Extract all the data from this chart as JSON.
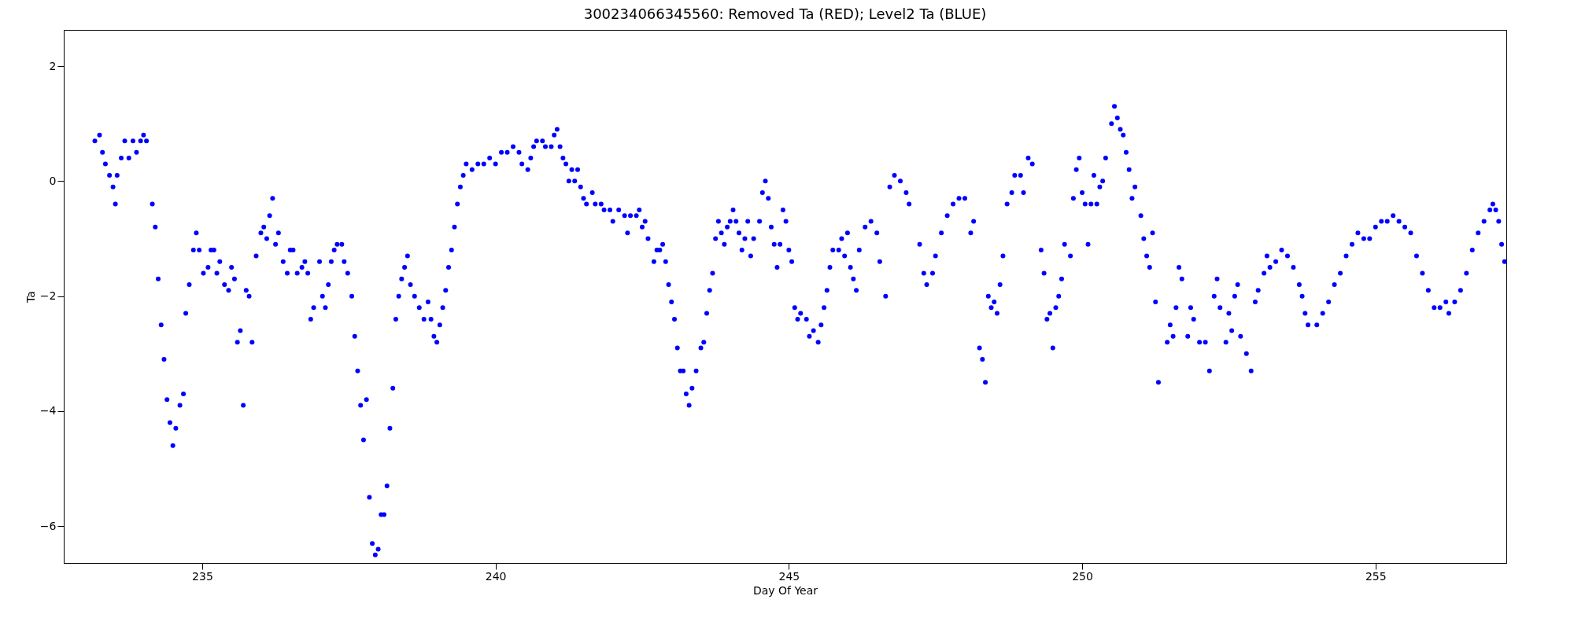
{
  "chart_data": {
    "type": "scatter",
    "title": "300234066345560: Removed Ta (RED); Level2 Ta (BLUE)",
    "xlabel": "Day Of Year",
    "ylabel": "Ta",
    "xlim": [
      232.64,
      257.23
    ],
    "ylim": [
      -6.64,
      2.63
    ],
    "xticks": [
      235,
      240,
      245,
      250,
      255
    ],
    "yticks": [
      -6,
      -4,
      -2,
      0,
      2
    ],
    "grid": false,
    "legend": false,
    "marker": "circle",
    "series": [
      {
        "color": "#0000ff",
        "x": [
          233.17,
          233.25,
          233.3,
          233.35,
          233.42,
          233.48,
          233.52,
          233.55,
          233.62,
          233.68,
          233.75,
          233.82,
          233.88,
          233.95,
          234.0,
          234.05,
          234.15,
          234.2,
          234.25,
          234.3,
          234.35,
          234.4,
          234.45,
          234.5,
          234.55,
          234.62,
          234.68,
          234.72,
          234.78,
          234.85,
          234.9,
          234.95,
          235.02,
          235.1,
          235.15,
          235.2,
          235.25,
          235.3,
          235.38,
          235.45,
          235.5,
          235.55,
          235.6,
          235.65,
          235.7,
          235.75,
          235.8,
          235.85,
          235.92,
          236.0,
          236.05,
          236.1,
          236.15,
          236.2,
          236.25,
          236.3,
          236.38,
          236.45,
          236.5,
          236.55,
          236.62,
          236.7,
          236.75,
          236.8,
          236.85,
          236.9,
          237.0,
          237.05,
          237.1,
          237.15,
          237.2,
          237.25,
          237.3,
          237.38,
          237.42,
          237.48,
          237.55,
          237.6,
          237.65,
          237.7,
          237.75,
          237.8,
          237.85,
          237.9,
          237.95,
          238.0,
          238.05,
          238.1,
          238.15,
          238.2,
          238.25,
          238.3,
          238.35,
          238.4,
          238.45,
          238.5,
          238.55,
          238.62,
          238.7,
          238.78,
          238.85,
          238.9,
          238.95,
          239.0,
          239.05,
          239.1,
          239.15,
          239.2,
          239.25,
          239.3,
          239.35,
          239.4,
          239.45,
          239.5,
          239.6,
          239.7,
          239.8,
          239.9,
          240.0,
          240.1,
          240.2,
          240.3,
          240.4,
          240.45,
          240.55,
          240.6,
          240.65,
          240.7,
          240.8,
          240.85,
          240.95,
          241.0,
          241.05,
          241.1,
          241.15,
          241.2,
          241.25,
          241.3,
          241.35,
          241.4,
          241.45,
          241.5,
          241.55,
          241.65,
          241.7,
          241.8,
          241.85,
          241.95,
          242.0,
          242.1,
          242.2,
          242.25,
          242.3,
          242.4,
          242.45,
          242.5,
          242.55,
          242.6,
          242.7,
          242.75,
          242.8,
          242.85,
          242.9,
          242.95,
          243.0,
          243.05,
          243.1,
          243.15,
          243.2,
          243.25,
          243.3,
          243.35,
          243.42,
          243.5,
          243.55,
          243.6,
          243.65,
          243.7,
          243.75,
          243.8,
          243.85,
          243.9,
          243.95,
          244.0,
          244.05,
          244.1,
          244.15,
          244.2,
          244.25,
          244.3,
          244.35,
          244.4,
          244.5,
          244.55,
          244.6,
          244.65,
          244.7,
          244.75,
          244.8,
          244.85,
          244.9,
          244.95,
          245.0,
          245.05,
          245.1,
          245.15,
          245.2,
          245.3,
          245.35,
          245.42,
          245.5,
          245.55,
          245.6,
          245.65,
          245.7,
          245.75,
          245.85,
          245.9,
          245.95,
          246.0,
          246.05,
          246.1,
          246.15,
          246.2,
          246.3,
          246.4,
          246.5,
          246.55,
          246.65,
          246.72,
          246.8,
          246.9,
          247.0,
          247.05,
          247.23,
          247.3,
          247.35,
          247.45,
          247.5,
          247.6,
          247.7,
          247.8,
          247.9,
          248.0,
          248.1,
          248.15,
          248.25,
          248.3,
          248.35,
          248.4,
          248.45,
          248.5,
          248.55,
          248.6,
          248.65,
          248.72,
          248.8,
          248.85,
          248.95,
          249.0,
          249.08,
          249.15,
          249.3,
          249.35,
          249.4,
          249.45,
          249.5,
          249.55,
          249.6,
          249.65,
          249.7,
          249.8,
          249.85,
          249.9,
          249.95,
          250.0,
          250.05,
          250.1,
          250.15,
          250.2,
          250.25,
          250.3,
          250.35,
          250.4,
          250.5,
          250.55,
          250.6,
          250.65,
          250.7,
          250.75,
          250.8,
          250.85,
          250.9,
          251.0,
          251.05,
          251.1,
          251.15,
          251.2,
          251.25,
          251.3,
          251.45,
          251.5,
          251.55,
          251.6,
          251.65,
          251.7,
          251.8,
          251.85,
          251.9,
          252.0,
          252.1,
          252.17,
          252.25,
          252.3,
          252.35,
          252.45,
          252.5,
          252.55,
          252.6,
          252.65,
          252.7,
          252.8,
          252.88,
          252.95,
          253.0,
          253.1,
          253.15,
          253.2,
          253.3,
          253.4,
          253.5,
          253.6,
          253.7,
          253.75,
          253.8,
          253.85,
          254.0,
          254.1,
          254.2,
          254.3,
          254.4,
          254.5,
          254.6,
          254.7,
          254.8,
          254.9,
          255.0,
          255.1,
          255.2,
          255.3,
          255.4,
          255.5,
          255.6,
          255.7,
          255.8,
          255.9,
          256.0,
          256.1,
          256.2,
          256.25,
          256.35,
          256.45,
          256.55,
          256.65,
          256.75,
          256.85,
          256.95,
          257.0,
          257.05,
          257.1,
          257.15,
          257.2
        ],
        "values": [
          0.7,
          0.8,
          0.5,
          0.3,
          0.1,
          -0.1,
          -0.4,
          0.1,
          0.4,
          0.7,
          0.4,
          0.7,
          0.5,
          0.7,
          0.8,
          0.7,
          -0.4,
          -0.8,
          -1.7,
          -2.5,
          -3.1,
          -3.8,
          -4.2,
          -4.6,
          -4.3,
          -3.9,
          -3.7,
          -2.3,
          -1.8,
          -1.2,
          -0.9,
          -1.2,
          -1.6,
          -1.5,
          -1.2,
          -1.2,
          -1.6,
          -1.4,
          -1.8,
          -1.9,
          -1.5,
          -1.7,
          -2.8,
          -2.6,
          -3.9,
          -1.9,
          -2.0,
          -2.8,
          -1.3,
          -0.9,
          -0.8,
          -1.0,
          -0.6,
          -0.3,
          -1.1,
          -0.9,
          -1.4,
          -1.6,
          -1.2,
          -1.2,
          -1.6,
          -1.5,
          -1.4,
          -1.6,
          -2.4,
          -2.2,
          -1.4,
          -2.0,
          -2.2,
          -1.8,
          -1.4,
          -1.2,
          -1.1,
          -1.1,
          -1.4,
          -1.6,
          -2.0,
          -2.7,
          -3.3,
          -3.9,
          -4.5,
          -3.8,
          -5.5,
          -6.3,
          -6.5,
          -6.4,
          -5.8,
          -5.8,
          -5.3,
          -4.3,
          -3.6,
          -2.4,
          -2.0,
          -1.7,
          -1.5,
          -1.3,
          -1.8,
          -2.0,
          -2.2,
          -2.4,
          -2.1,
          -2.4,
          -2.7,
          -2.8,
          -2.5,
          -2.2,
          -1.9,
          -1.5,
          -1.2,
          -0.8,
          -0.4,
          -0.1,
          0.1,
          0.3,
          0.2,
          0.3,
          0.3,
          0.4,
          0.3,
          0.5,
          0.5,
          0.6,
          0.5,
          0.3,
          0.2,
          0.4,
          0.6,
          0.7,
          0.7,
          0.6,
          0.6,
          0.8,
          0.9,
          0.6,
          0.4,
          0.3,
          0.0,
          0.2,
          0.0,
          0.2,
          -0.1,
          -0.3,
          -0.4,
          -0.2,
          -0.4,
          -0.4,
          -0.5,
          -0.5,
          -0.7,
          -0.5,
          -0.6,
          -0.9,
          -0.6,
          -0.6,
          -0.5,
          -0.8,
          -0.7,
          -1.0,
          -1.4,
          -1.2,
          -1.2,
          -1.1,
          -1.4,
          -1.8,
          -2.1,
          -2.4,
          -2.9,
          -3.3,
          -3.3,
          -3.7,
          -3.9,
          -3.6,
          -3.3,
          -2.9,
          -2.8,
          -2.3,
          -1.9,
          -1.6,
          -1.0,
          -0.7,
          -0.9,
          -1.1,
          -0.8,
          -0.7,
          -0.5,
          -0.7,
          -0.9,
          -1.2,
          -1.0,
          -0.7,
          -1.3,
          -1.0,
          -0.7,
          -0.2,
          0.0,
          -0.3,
          -0.8,
          -1.1,
          -1.5,
          -1.1,
          -0.5,
          -0.7,
          -1.2,
          -1.4,
          -2.2,
          -2.4,
          -2.3,
          -2.4,
          -2.7,
          -2.6,
          -2.8,
          -2.5,
          -2.2,
          -1.9,
          -1.5,
          -1.2,
          -1.2,
          -1.0,
          -1.3,
          -0.9,
          -1.5,
          -1.7,
          -1.9,
          -1.2,
          -0.8,
          -0.7,
          -0.9,
          -1.4,
          -2.0,
          -0.1,
          0.1,
          0.0,
          -0.2,
          -0.4,
          -1.1,
          -1.6,
          -1.8,
          -1.6,
          -1.3,
          -0.9,
          -0.6,
          -0.4,
          -0.3,
          -0.3,
          -0.9,
          -0.7,
          -2.9,
          -3.1,
          -3.5,
          -2.0,
          -2.2,
          -2.1,
          -2.3,
          -1.8,
          -1.3,
          -0.4,
          -0.2,
          0.1,
          0.1,
          -0.2,
          0.4,
          0.3,
          -1.2,
          -1.6,
          -2.4,
          -2.3,
          -2.9,
          -2.2,
          -2.0,
          -1.7,
          -1.1,
          -1.3,
          -0.3,
          0.2,
          0.4,
          -0.2,
          -0.4,
          -1.1,
          -0.4,
          0.1,
          -0.4,
          -0.1,
          0.0,
          0.4,
          1.0,
          1.3,
          1.1,
          0.9,
          0.8,
          0.5,
          0.2,
          -0.3,
          -0.1,
          -0.6,
          -1.0,
          -1.3,
          -1.5,
          -0.9,
          -2.1,
          -3.5,
          -2.8,
          -2.5,
          -2.7,
          -2.2,
          -1.5,
          -1.7,
          -2.7,
          -2.2,
          -2.4,
          -2.8,
          -2.8,
          -3.3,
          -2.0,
          -1.7,
          -2.2,
          -2.8,
          -2.3,
          -2.6,
          -2.0,
          -1.8,
          -2.7,
          -3.0,
          -3.3,
          -2.1,
          -1.9,
          -1.6,
          -1.3,
          -1.5,
          -1.4,
          -1.2,
          -1.3,
          -1.5,
          -1.8,
          -2.0,
          -2.3,
          -2.5,
          -2.5,
          -2.3,
          -2.1,
          -1.8,
          -1.6,
          -1.3,
          -1.1,
          -0.9,
          -1.0,
          -1.0,
          -0.8,
          -0.7,
          -0.7,
          -0.6,
          -0.7,
          -0.8,
          -0.9,
          -1.3,
          -1.6,
          -1.9,
          -2.2,
          -2.2,
          -2.1,
          -2.3,
          -2.1,
          -1.9,
          -1.6,
          -1.2,
          -0.9,
          -0.7,
          -0.5,
          -0.4,
          -0.5,
          -0.7,
          -1.1,
          -1.4
        ]
      }
    ]
  }
}
